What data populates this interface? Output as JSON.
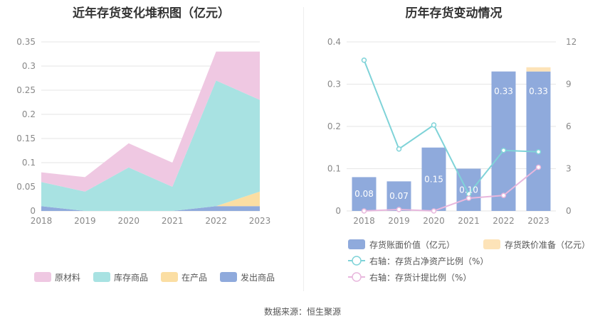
{
  "source": "数据来源：恒生聚源",
  "chart_data": [
    {
      "type": "area",
      "stacked": true,
      "title": "近年存货变化堆积图（亿元）",
      "categories": [
        "2018",
        "2019",
        "2020",
        "2021",
        "2022",
        "2023"
      ],
      "ylim": [
        0,
        0.35
      ],
      "yticks": [
        "0",
        "0.05",
        "0.1",
        "0.15",
        "0.2",
        "0.25",
        "0.3",
        "0.35"
      ],
      "grid": true,
      "legend_position": "bottom",
      "series": [
        {
          "name": "发出商品",
          "color": "#8faadc",
          "values": [
            0.01,
            0.0,
            0.0,
            0.0,
            0.01,
            0.01
          ]
        },
        {
          "name": "在产品",
          "color": "#fbdea3",
          "values": [
            0.0,
            0.0,
            0.0,
            0.0,
            0.0,
            0.03
          ]
        },
        {
          "name": "库存商品",
          "color": "#a8e2e2",
          "values": [
            0.05,
            0.04,
            0.09,
            0.05,
            0.26,
            0.19
          ]
        },
        {
          "name": "原材料",
          "color": "#efc8e2",
          "values": [
            0.02,
            0.03,
            0.05,
            0.05,
            0.06,
            0.1
          ]
        }
      ],
      "legend_order": [
        "原材料",
        "库存商品",
        "在产品",
        "发出商品"
      ]
    },
    {
      "type": "bar",
      "stacked": true,
      "title": "历年存货变动情况",
      "categories": [
        "2018",
        "2019",
        "2020",
        "2021",
        "2022",
        "2023"
      ],
      "ylim": [
        0,
        0.4
      ],
      "yticks": [
        "0",
        "0.1",
        "0.2",
        "0.3",
        "0.4"
      ],
      "y2lim": [
        0,
        12
      ],
      "y2ticks": [
        "0",
        "3",
        "6",
        "9",
        "12"
      ],
      "grid": true,
      "legend_position": "bottom",
      "bar_series": [
        {
          "name": "存货账面价值（亿元）",
          "color": "#8faadc",
          "values": [
            0.08,
            0.07,
            0.15,
            0.1,
            0.33,
            0.33
          ],
          "labels": [
            "0.08",
            "0.07",
            "0.15",
            "0.10",
            "0.33",
            "0.33"
          ]
        },
        {
          "name": "存货跌价准备（亿元）",
          "color": "#fde3b8",
          "values": [
            0,
            0,
            0,
            0,
            0,
            0.01
          ]
        }
      ],
      "line_series": [
        {
          "name": "右轴：存货占净资产比例（%）",
          "color": "#7fd3d8",
          "values": [
            10.7,
            4.4,
            6.1,
            1.2,
            4.3,
            4.2
          ]
        },
        {
          "name": "右轴：存货计提比例（%）",
          "color": "#e8b7dd",
          "values": [
            0.0,
            0.1,
            0.0,
            0.9,
            1.1,
            3.1
          ]
        }
      ]
    }
  ]
}
